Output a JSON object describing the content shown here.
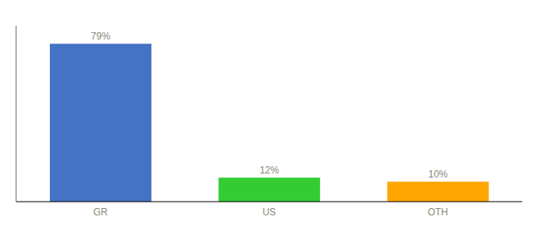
{
  "chart_data": {
    "type": "bar",
    "categories": [
      "GR",
      "US",
      "OTH"
    ],
    "values": [
      79,
      12,
      10
    ],
    "value_labels": [
      "79%",
      "12%",
      "10%"
    ],
    "colors": [
      "#4472c4",
      "#33cc33",
      "#ffa500"
    ],
    "ylim": [
      0,
      88
    ],
    "data_labels": true,
    "tick_labels": "x",
    "grid": false
  }
}
